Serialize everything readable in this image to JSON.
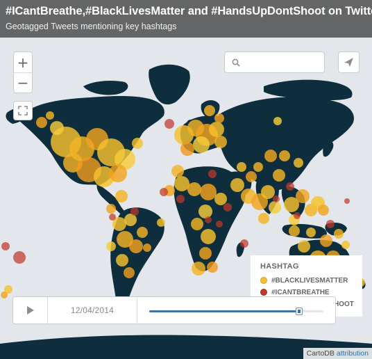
{
  "header": {
    "title": "#ICantBreathe,#BlackLivesMatter and #HandsUpDontShoot on Twitter",
    "subtitle": "Geotagged Tweets mentioning key hashtags"
  },
  "controls": {
    "zoom_in_label": "+",
    "zoom_out_label": "−",
    "search_placeholder": "",
    "search_icon": "search-icon",
    "share_icon": "send-icon",
    "fullscreen_icon": "fullscreen-icon"
  },
  "legend": {
    "title": "HASHTAG",
    "items": [
      {
        "label": "#BLACKLIVESMATTER",
        "color": "#f6c12c"
      },
      {
        "label": "#ICANTBREATHE",
        "color": "#c0392b"
      },
      {
        "label": "#HANDSUPDONTSHOOT",
        "color": "#f6c12c"
      }
    ]
  },
  "timeline": {
    "date": "12/04/2014",
    "progress": 0.86,
    "play_icon": "play-icon"
  },
  "attribution": {
    "provider": "CartoDB",
    "link": "attribution"
  },
  "colors": {
    "land": "#0e2e3d",
    "ocean": "#e3e7eb",
    "header_bg": "#58595b",
    "slider_fill": "#3c76a8"
  }
}
